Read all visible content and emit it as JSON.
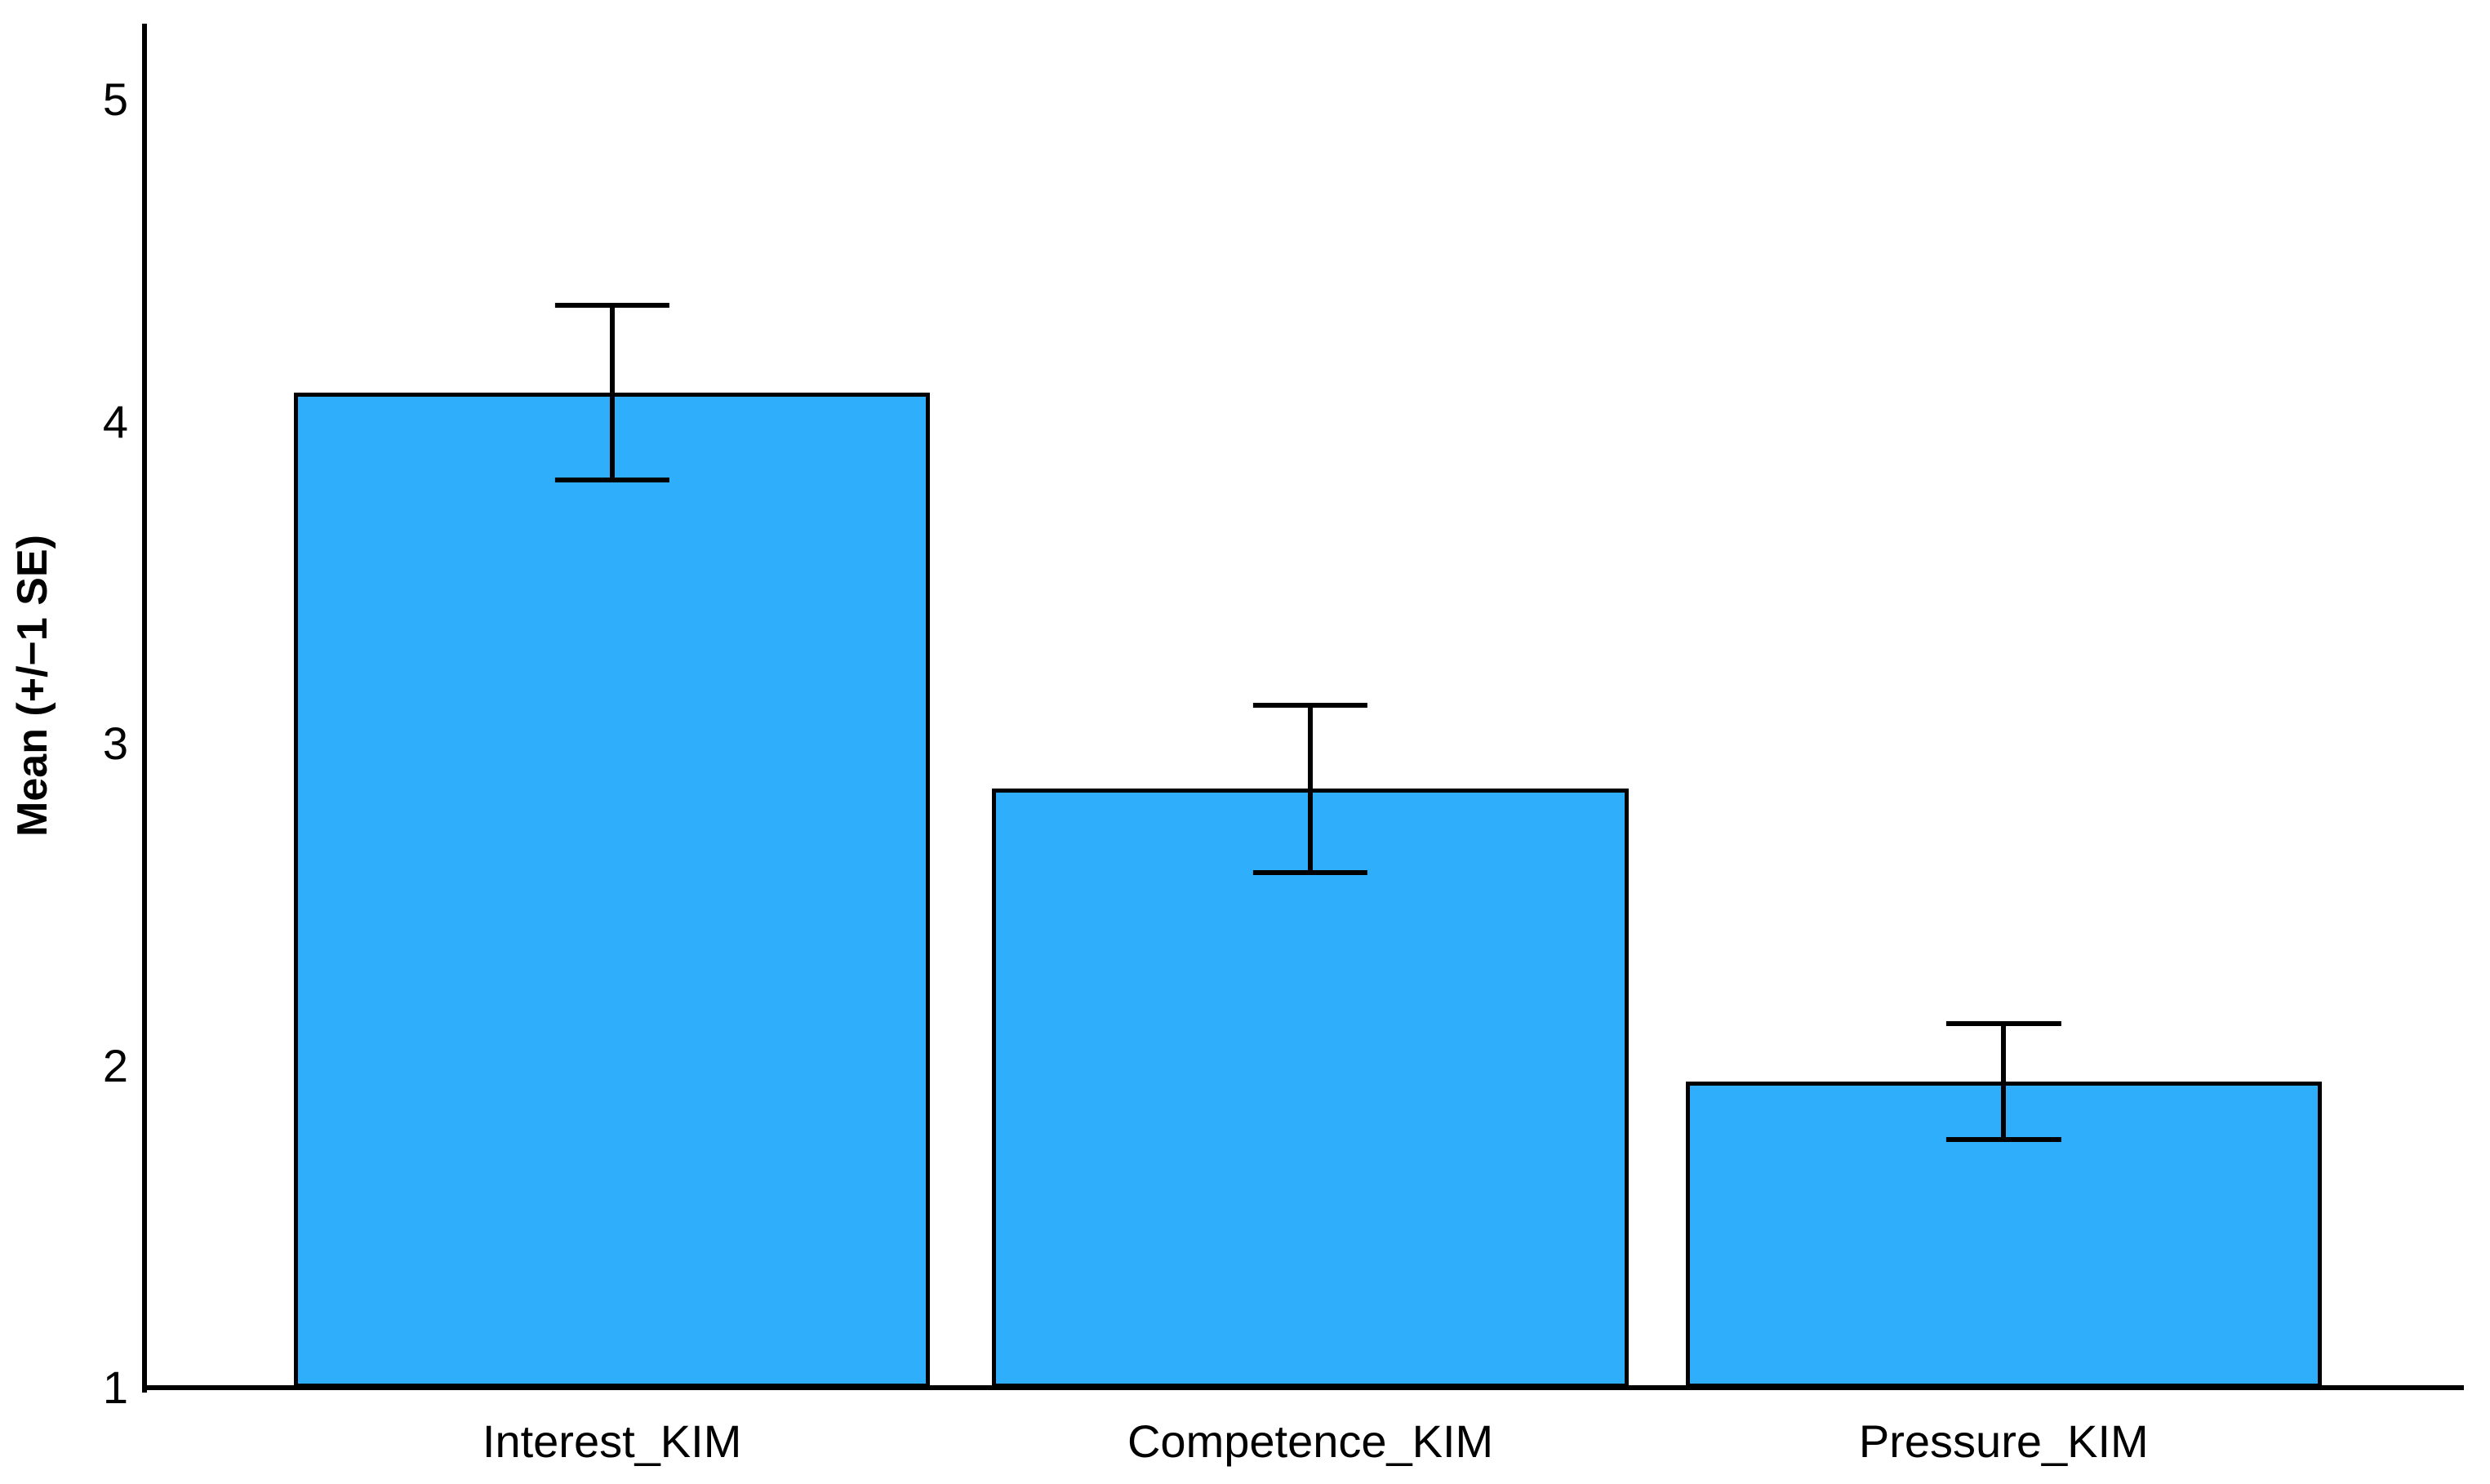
{
  "chart_data": {
    "type": "bar",
    "title": "",
    "categories": [
      "Interest_KIM",
      "Competence_KIM",
      "Pressure_KIM"
    ],
    "series": [
      {
        "name": "Mean",
        "values": [
          4.09,
          2.86,
          1.95
        ],
        "errors_plus": [
          0.27,
          0.26,
          0.18
        ],
        "errors_minus": [
          0.27,
          0.26,
          0.18
        ]
      }
    ],
    "xlabel": "",
    "ylabel": "Mean (+/−1 SE)",
    "yticks": [
      1,
      2,
      3,
      4,
      5
    ],
    "ylim": [
      1,
      5.23
    ],
    "grid": false,
    "legend": false,
    "error_bars": "+/- 1 SE, capped",
    "colors": {
      "bar_fill": "#2FAEFB",
      "bar_border": "#000000",
      "axis": "#000000",
      "text": "#000000",
      "background": "#ffffff"
    },
    "layout": {
      "bar_center_frac": [
        0.2024,
        0.5032,
        0.8018
      ],
      "bar_width_frac": 0.274,
      "cap_width_frac": 0.0493
    }
  }
}
